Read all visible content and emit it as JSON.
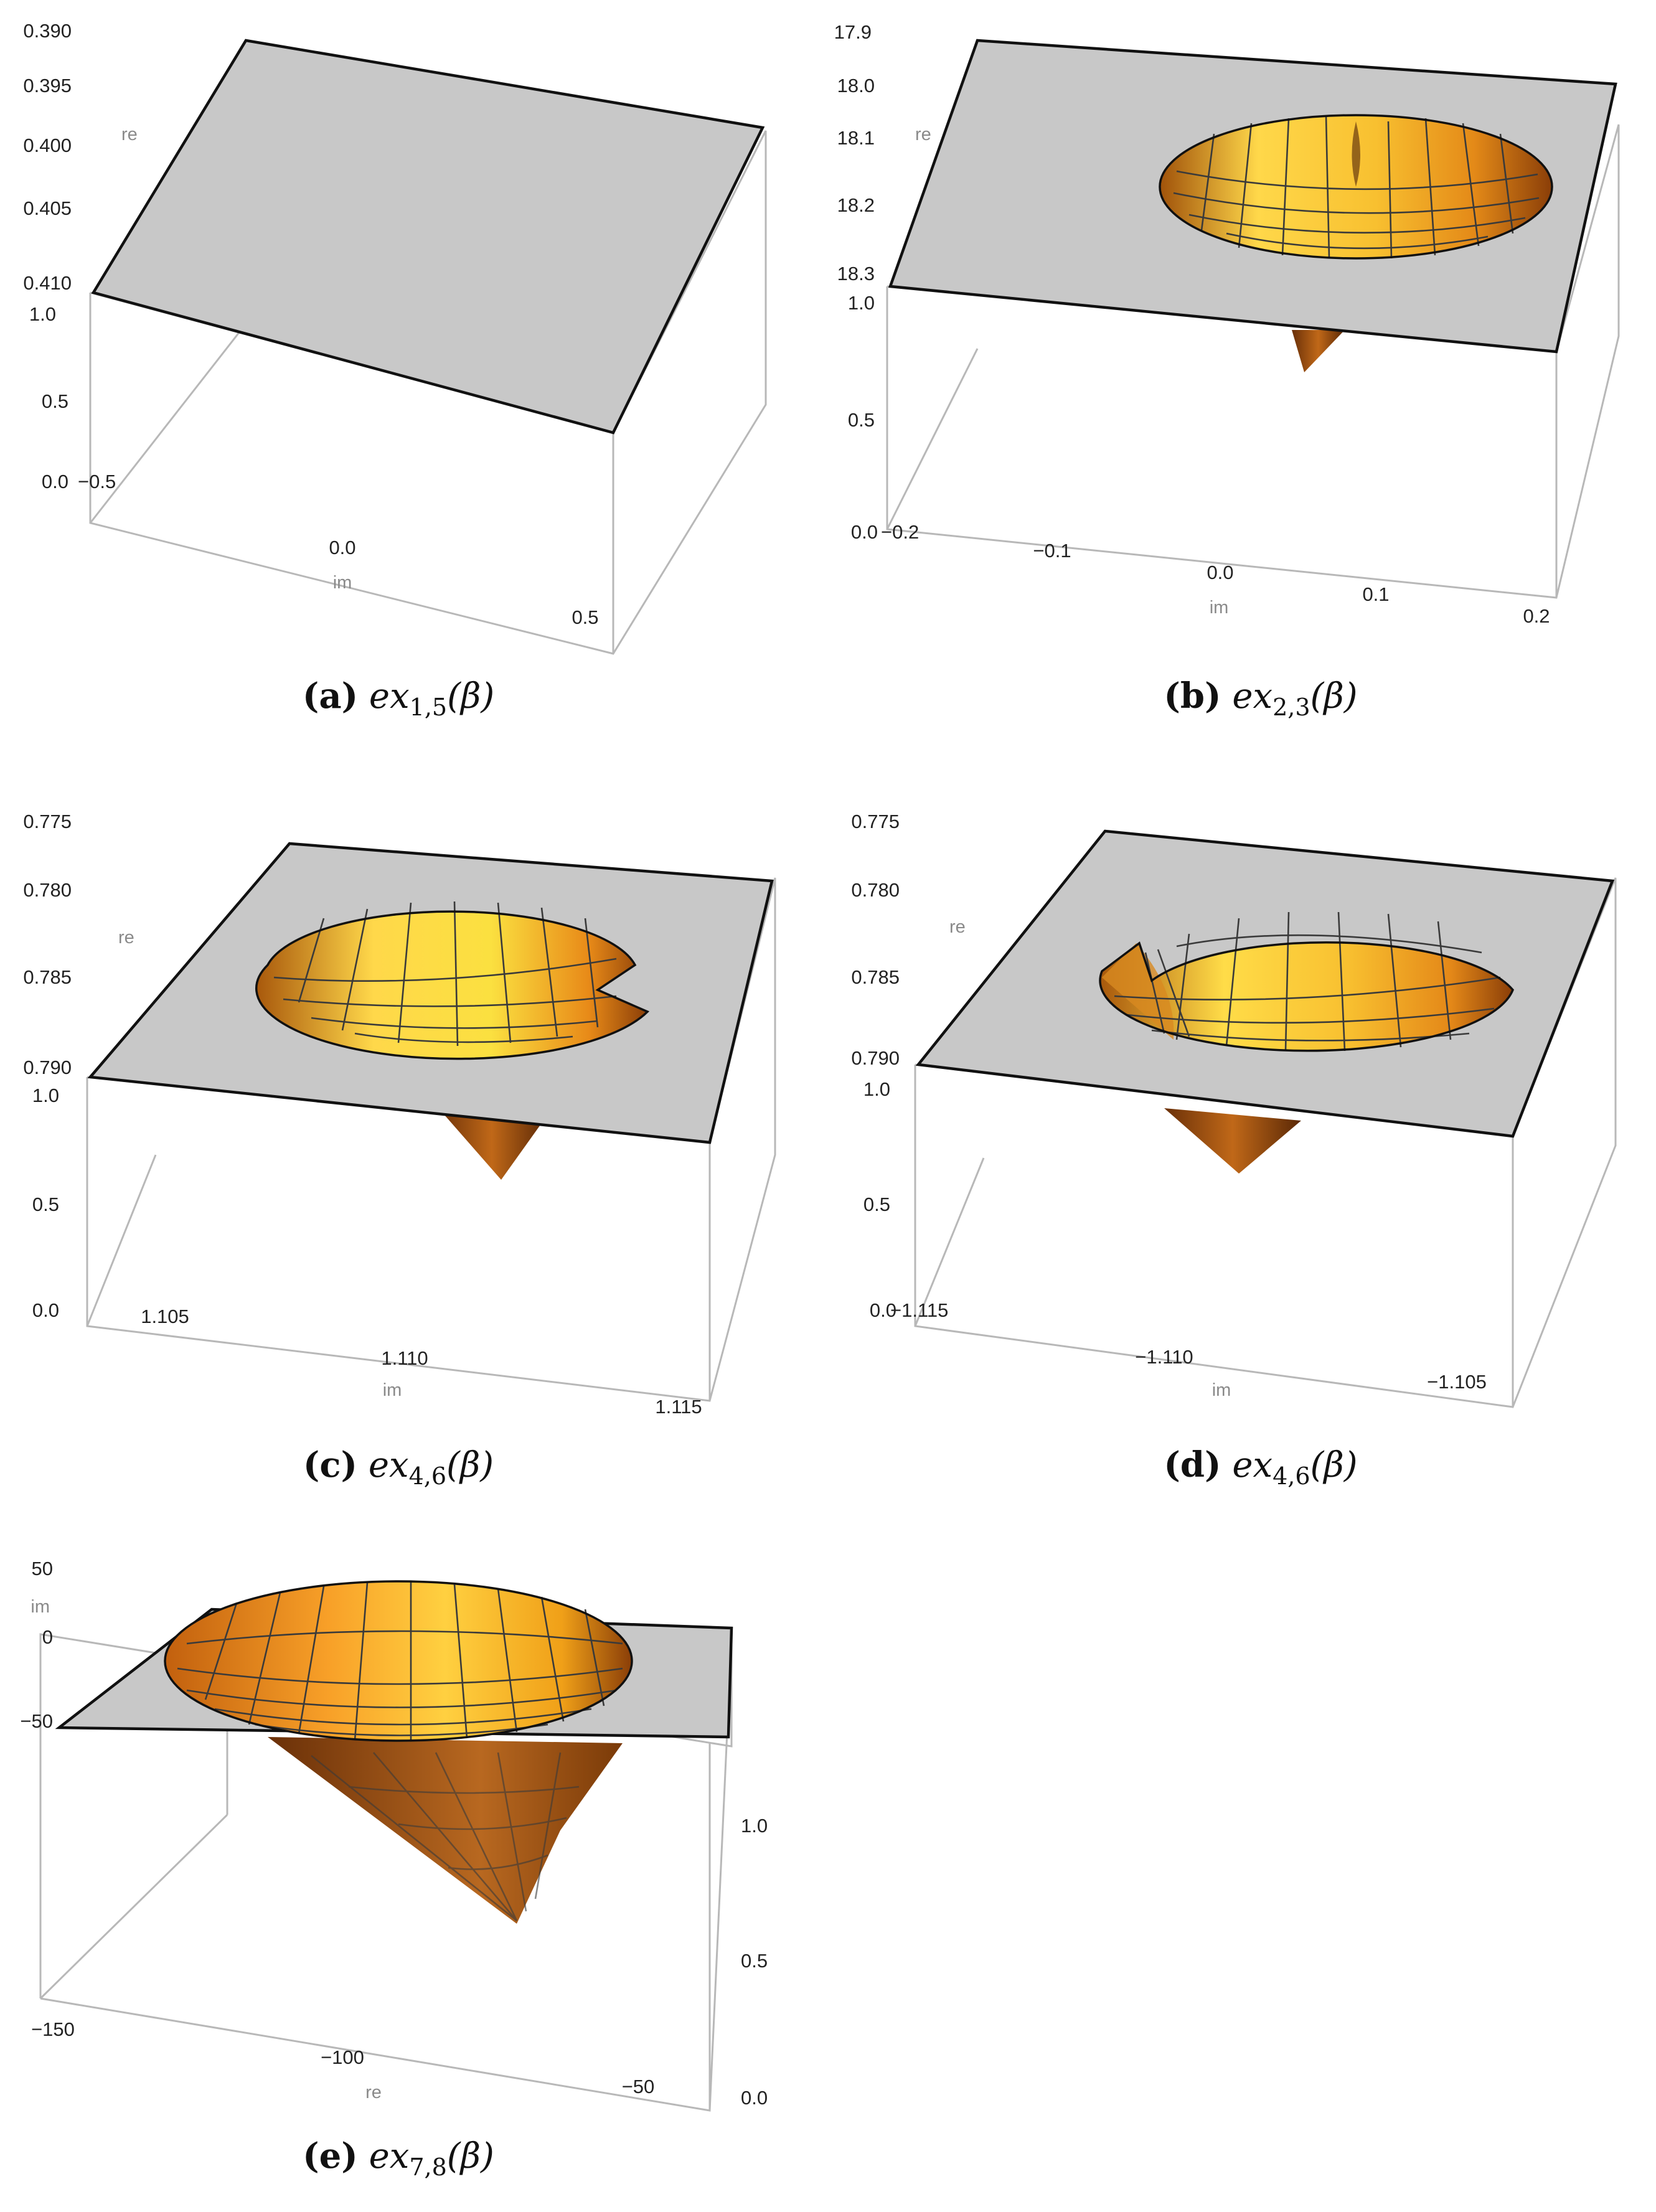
{
  "chart_data": [
    {
      "id": "a",
      "type": "surface3d",
      "caption": {
        "tag": "(a)",
        "fn": "ex",
        "sub": "1,5",
        "arg": "(β)"
      },
      "plane_level": 1.0,
      "hole": false,
      "axes": {
        "re": {
          "label": "re",
          "ticks": [
            "0.390",
            "0.395",
            "0.400",
            "0.405",
            "0.410"
          ]
        },
        "z": {
          "ticks": [
            "1.0",
            "0.5",
            "0.0"
          ]
        },
        "im": {
          "label": "im",
          "ticks": [
            "-0.5",
            "0.0",
            "0.5"
          ]
        }
      }
    },
    {
      "id": "b",
      "type": "surface3d",
      "caption": {
        "tag": "(b)",
        "fn": "ex",
        "sub": "2,3",
        "arg": "(β)"
      },
      "plane_level": 1.0,
      "hole": true,
      "notch": "top-center",
      "axes": {
        "re": {
          "label": "re",
          "ticks": [
            "17.9",
            "18.0",
            "18.1",
            "18.2",
            "18.3"
          ]
        },
        "z": {
          "ticks": [
            "1.0",
            "0.5",
            "0.0"
          ]
        },
        "im": {
          "label": "im",
          "ticks": [
            "-0.2",
            "-0.1",
            "0.0",
            "0.1",
            "0.2"
          ]
        }
      }
    },
    {
      "id": "c",
      "type": "surface3d",
      "caption": {
        "tag": "(c)",
        "fn": "ex",
        "sub": "4,6",
        "arg": "(β)"
      },
      "plane_level": 1.0,
      "hole": true,
      "notch": "right",
      "axes": {
        "re": {
          "label": "re",
          "ticks": [
            "0.775",
            "0.780",
            "0.785",
            "0.790"
          ]
        },
        "z": {
          "ticks": [
            "1.0",
            "0.5",
            "0.0"
          ]
        },
        "im": {
          "label": "im",
          "ticks": [
            "1.105",
            "1.110",
            "1.115"
          ]
        }
      }
    },
    {
      "id": "d",
      "type": "surface3d",
      "caption": {
        "tag": "(d)",
        "fn": "ex",
        "sub": "4,6",
        "arg": "(β)"
      },
      "plane_level": 1.0,
      "hole": true,
      "notch": "left",
      "axes": {
        "re": {
          "label": "re",
          "ticks": [
            "0.775",
            "0.780",
            "0.785",
            "0.790"
          ]
        },
        "z": {
          "ticks": [
            "1.0",
            "0.5",
            "0.0"
          ]
        },
        "im": {
          "label": "im",
          "ticks": [
            "-1.115",
            "-1.110",
            "-1.105"
          ]
        }
      }
    },
    {
      "id": "e",
      "type": "surface3d",
      "caption": {
        "tag": "(e)",
        "fn": "ex",
        "sub": "7,8",
        "arg": "(β)"
      },
      "plane_level": 1.0,
      "hole": true,
      "notch": "none",
      "axes": {
        "im": {
          "label": "im",
          "ticks": [
            "50",
            "0",
            "-50"
          ]
        },
        "z": {
          "ticks": [
            "1.0",
            "0.5",
            "0.0"
          ]
        },
        "re": {
          "label": "re",
          "ticks": [
            "-150",
            "-100",
            "-50"
          ]
        }
      }
    }
  ]
}
